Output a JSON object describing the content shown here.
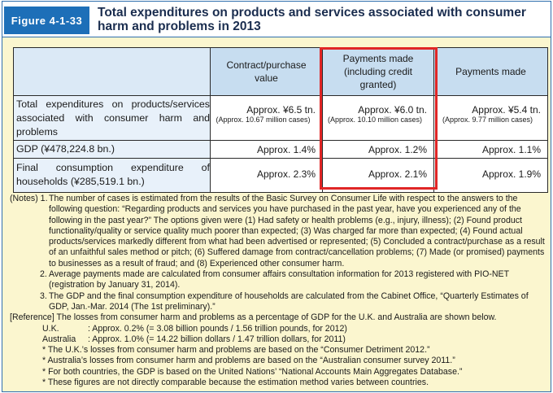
{
  "figure": {
    "label": "Figure 4-1-33",
    "title": "Total expenditures on products and services associated with consumer harm and problems in 2013"
  },
  "table": {
    "columns": [
      "Contract/purchase value",
      "Payments made (including credit granted)",
      "Payments made"
    ],
    "rows": [
      {
        "label": "Total expenditures on products/services associated with consumer harm and problems",
        "values": [
          "Approx. ¥6.5 tn.",
          "Approx. ¥6.0 tn.",
          "Approx. ¥5.4 tn."
        ],
        "subvalues": [
          "(Approx. 10.67 million cases)",
          "(Approx. 10.10 million cases)",
          "(Approx. 9.77 million cases)"
        ]
      },
      {
        "label": "GDP (¥478,224.8 bn.)",
        "values": [
          "Approx. 1.4%",
          "Approx. 1.2%",
          "Approx. 1.1%"
        ]
      },
      {
        "label": "Final consumption expenditure of households (¥285,519.1 bn.)",
        "values": [
          "Approx. 2.3%",
          "Approx. 2.1%",
          "Approx. 1.9%"
        ]
      }
    ]
  },
  "notes": {
    "n1_prefix": "(Notes) 1.",
    "n1": "The number of cases is estimated from the results of the Basic Survey on Consumer Life with respect to the answers to the following question: “Regarding products and services you have purchased in the past year, have you experienced any of the following in the past year?” The options given were (1) Had safety or health problems (e.g., injury, illness); (2) Found product functionality/quality or service quality much poorer than expected; (3) Was charged far more than expected; (4) Found actual products/services markedly different from what had been advertised or represented; (5) Concluded a contract/purchase as a result of an unfaithful sales method or pitch; (6) Suffered damage from contract/cancellation problems; (7) Made (or promised) payments to businesses as a result of fraud; and (8) Experienced other consumer harm.",
    "n2_prefix": "2.",
    "n2": "Average payments made are calculated from consumer affairs consultation information for 2013 registered with PIO-NET (registration by January 31, 2014).",
    "n3_prefix": "3.",
    "n3": "The GDP and the final consumption expenditure of households are calculated from the Cabinet Office, “Quarterly Estimates of GDP, Jan.-Mar. 2014 (The 1st preliminary).”",
    "reference": "[Reference] The losses from consumer harm and problems as a percentage of GDP for the U.K. and Australia are shown below.",
    "uk_label": "U.K.",
    "uk": ": Approx. 0.2% (= 3.08 billion pounds / 1.56 trillion pounds,   for 2012)",
    "au_label": "Australia",
    "au": ": Approx. 1.0% (= 14.22 billion dollars / 1.47 trillion dollars,   for 2011)",
    "b1": "* The U.K.’s losses from consumer harm and problems are based on the “Consumer Detriment 2012.”",
    "b2": "* Australia’s losses from consumer harm and problems are based on the “Australian consumer survey 2011.”",
    "b3": "* For both countries, the GDP is based on the United Nations’ “National Accounts Main Aggregates Database.”",
    "b4": "* These figures are not directly comparable because the estimation method varies between countries."
  },
  "colors": {
    "label_bg": "#1d6fb8",
    "panel_bg": "#fbf6cf",
    "header_cell_bg": "#c7ddf0",
    "highlight": "#e02626"
  }
}
